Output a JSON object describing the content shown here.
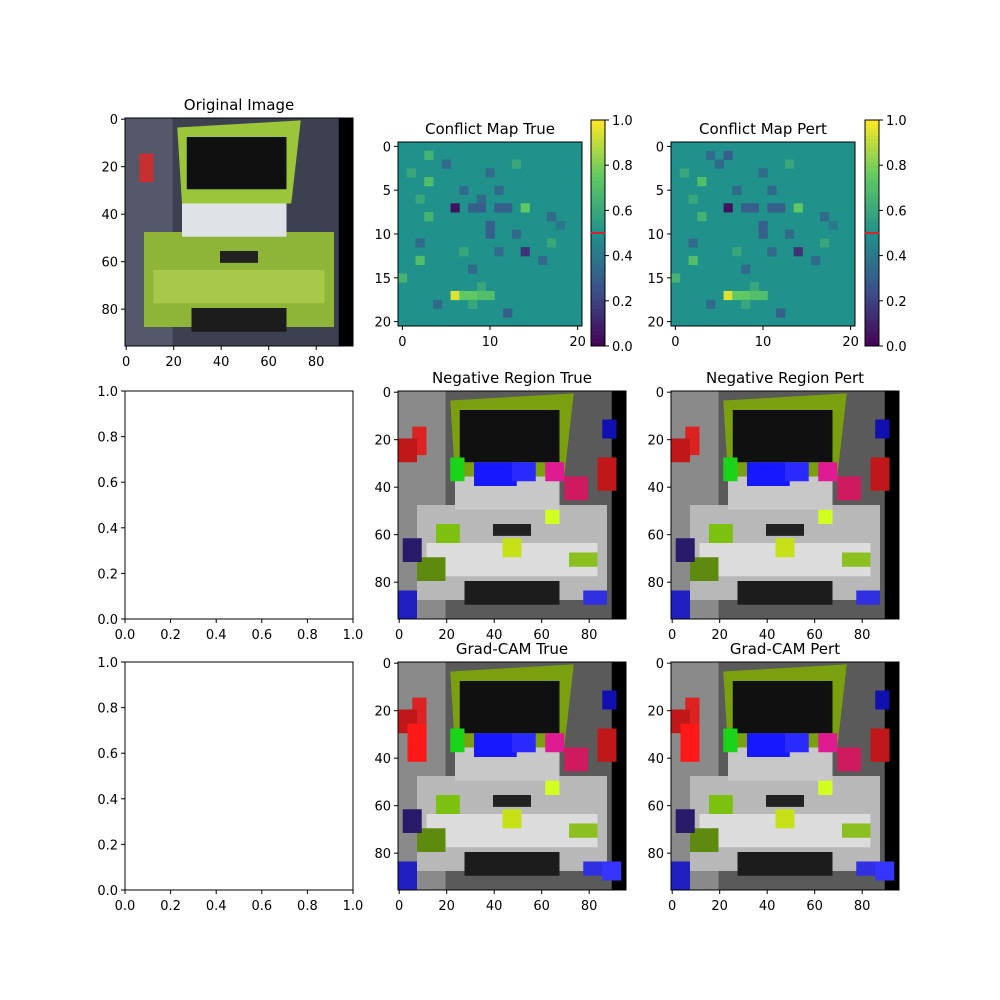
{
  "figure": {
    "panels": {
      "original": {
        "title": "Original Image",
        "xticks": [
          "0",
          "20",
          "40",
          "60",
          "80"
        ],
        "yticks": [
          "0",
          "20",
          "40",
          "60",
          "80"
        ]
      },
      "conflict_true": {
        "title": "Conflict Map True",
        "xticks": [
          "0",
          "10",
          "20"
        ],
        "yticks": [
          "0",
          "5",
          "10",
          "15",
          "20"
        ]
      },
      "conflict_pert": {
        "title": "Conflict Map Pert",
        "xticks": [
          "0",
          "10",
          "20"
        ],
        "yticks": [
          "0",
          "5",
          "10",
          "15",
          "20"
        ]
      },
      "colorbar": {
        "ticks": [
          "0.0",
          "0.2",
          "0.4",
          "0.6",
          "0.8",
          "1.0"
        ],
        "marker_value": 0.5,
        "marker_color": "#d62728"
      },
      "empty_1": {
        "xticks": [
          "0.0",
          "0.2",
          "0.4",
          "0.6",
          "0.8",
          "1.0"
        ],
        "yticks": [
          "0.0",
          "0.2",
          "0.4",
          "0.6",
          "0.8",
          "1.0"
        ]
      },
      "neg_true": {
        "title": "Negative Region True",
        "xticks": [
          "0",
          "20",
          "40",
          "60",
          "80"
        ],
        "yticks": [
          "0",
          "20",
          "40",
          "60",
          "80"
        ]
      },
      "neg_pert": {
        "title": "Negative Region Pert",
        "xticks": [
          "0",
          "20",
          "40",
          "60",
          "80"
        ],
        "yticks": [
          "0",
          "20",
          "40",
          "60",
          "80"
        ]
      },
      "empty_2": {
        "xticks": [
          "0.0",
          "0.2",
          "0.4",
          "0.6",
          "0.8",
          "1.0"
        ],
        "yticks": [
          "0.0",
          "0.2",
          "0.4",
          "0.6",
          "0.8",
          "1.0"
        ]
      },
      "gradcam_true": {
        "title": "Grad-CAM True",
        "xticks": [
          "0",
          "20",
          "40",
          "60",
          "80"
        ],
        "yticks": [
          "0",
          "20",
          "40",
          "60",
          "80"
        ]
      },
      "gradcam_pert": {
        "title": "Grad-CAM Pert",
        "xticks": [
          "0",
          "20",
          "40",
          "60",
          "80"
        ],
        "yticks": [
          "0",
          "20",
          "40",
          "60",
          "80"
        ]
      }
    },
    "colormap": "viridis"
  },
  "chart_data": [
    {
      "type": "heatmap",
      "title": "Original Image",
      "image_size": [
        96,
        96
      ],
      "xlim": [
        0,
        95
      ],
      "ylim": [
        95,
        0
      ]
    },
    {
      "type": "heatmap",
      "title": "Conflict Map True",
      "grid": [
        21,
        21
      ],
      "colorbar_range": [
        0,
        1
      ],
      "colormap": "viridis",
      "base_value": 0.5,
      "cells": [
        [
          1,
          3,
          0.65
        ],
        [
          2,
          5,
          0.35
        ],
        [
          2,
          13,
          0.6
        ],
        [
          3,
          1,
          0.6
        ],
        [
          3,
          10,
          0.35
        ],
        [
          4,
          3,
          0.7
        ],
        [
          5,
          7,
          0.35
        ],
        [
          5,
          11,
          0.35
        ],
        [
          6,
          2,
          0.6
        ],
        [
          6,
          9,
          0.35
        ],
        [
          7,
          6,
          0.05
        ],
        [
          7,
          8,
          0.3
        ],
        [
          7,
          9,
          0.3
        ],
        [
          7,
          11,
          0.3
        ],
        [
          7,
          12,
          0.3
        ],
        [
          7,
          14,
          0.75
        ],
        [
          8,
          3,
          0.65
        ],
        [
          8,
          17,
          0.35
        ],
        [
          9,
          10,
          0.3
        ],
        [
          9,
          18,
          0.4
        ],
        [
          10,
          10,
          0.3
        ],
        [
          10,
          13,
          0.35
        ],
        [
          11,
          2,
          0.35
        ],
        [
          11,
          17,
          0.6
        ],
        [
          12,
          7,
          0.6
        ],
        [
          12,
          11,
          0.35
        ],
        [
          12,
          14,
          0.15
        ],
        [
          13,
          2,
          0.7
        ],
        [
          13,
          16,
          0.35
        ],
        [
          14,
          8,
          0.35
        ],
        [
          15,
          0,
          0.65
        ],
        [
          16,
          9,
          0.6
        ],
        [
          17,
          6,
          0.95
        ],
        [
          17,
          7,
          0.75
        ],
        [
          17,
          8,
          0.75
        ],
        [
          17,
          9,
          0.7
        ],
        [
          17,
          10,
          0.7
        ],
        [
          18,
          4,
          0.35
        ],
        [
          18,
          8,
          0.6
        ],
        [
          19,
          12,
          0.3
        ]
      ]
    },
    {
      "type": "heatmap",
      "title": "Conflict Map Pert",
      "grid": [
        21,
        21
      ],
      "colorbar_range": [
        0,
        1
      ],
      "colormap": "viridis",
      "base_value": 0.5,
      "cells": [
        [
          1,
          4,
          0.35
        ],
        [
          1,
          6,
          0.3
        ],
        [
          2,
          5,
          0.35
        ],
        [
          2,
          13,
          0.6
        ],
        [
          3,
          1,
          0.6
        ],
        [
          3,
          10,
          0.35
        ],
        [
          4,
          3,
          0.7
        ],
        [
          5,
          7,
          0.35
        ],
        [
          5,
          11,
          0.35
        ],
        [
          6,
          2,
          0.6
        ],
        [
          7,
          6,
          0.05
        ],
        [
          7,
          8,
          0.3
        ],
        [
          7,
          9,
          0.3
        ],
        [
          7,
          11,
          0.3
        ],
        [
          7,
          12,
          0.3
        ],
        [
          7,
          14,
          0.75
        ],
        [
          8,
          3,
          0.65
        ],
        [
          8,
          17,
          0.35
        ],
        [
          9,
          10,
          0.3
        ],
        [
          9,
          18,
          0.4
        ],
        [
          10,
          10,
          0.3
        ],
        [
          10,
          13,
          0.35
        ],
        [
          11,
          2,
          0.35
        ],
        [
          11,
          17,
          0.6
        ],
        [
          12,
          7,
          0.6
        ],
        [
          12,
          11,
          0.35
        ],
        [
          12,
          14,
          0.15
        ],
        [
          13,
          2,
          0.7
        ],
        [
          13,
          16,
          0.35
        ],
        [
          14,
          8,
          0.35
        ],
        [
          15,
          0,
          0.65
        ],
        [
          16,
          9,
          0.6
        ],
        [
          17,
          6,
          0.95
        ],
        [
          17,
          7,
          0.75
        ],
        [
          17,
          8,
          0.75
        ],
        [
          17,
          9,
          0.7
        ],
        [
          17,
          10,
          0.7
        ],
        [
          18,
          4,
          0.35
        ],
        [
          18,
          8,
          0.6
        ],
        [
          19,
          12,
          0.3
        ]
      ]
    },
    {
      "type": "heatmap",
      "title": "Negative Region True",
      "image_size": [
        96,
        96
      ],
      "xlim": [
        0,
        95
      ],
      "ylim": [
        95,
        0
      ]
    },
    {
      "type": "heatmap",
      "title": "Negative Region Pert",
      "image_size": [
        96,
        96
      ],
      "xlim": [
        0,
        95
      ],
      "ylim": [
        95,
        0
      ]
    },
    {
      "type": "heatmap",
      "title": "Grad-CAM True",
      "image_size": [
        96,
        96
      ],
      "xlim": [
        0,
        95
      ],
      "ylim": [
        95,
        0
      ]
    },
    {
      "type": "heatmap",
      "title": "Grad-CAM Pert",
      "image_size": [
        96,
        96
      ],
      "xlim": [
        0,
        95
      ],
      "ylim": [
        95,
        0
      ]
    },
    {
      "type": "line",
      "series": [],
      "xlim": [
        0,
        1
      ],
      "ylim": [
        0,
        1
      ]
    },
    {
      "type": "line",
      "series": [],
      "xlim": [
        0,
        1
      ],
      "ylim": [
        0,
        1
      ]
    }
  ]
}
